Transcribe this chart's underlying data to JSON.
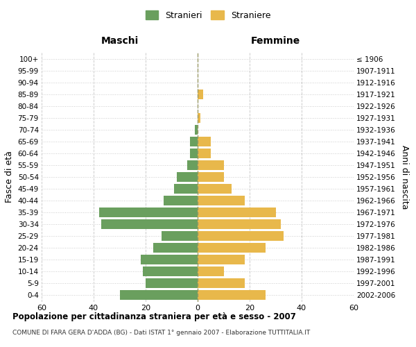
{
  "age_groups": [
    "0-4",
    "5-9",
    "10-14",
    "15-19",
    "20-24",
    "25-29",
    "30-34",
    "35-39",
    "40-44",
    "45-49",
    "50-54",
    "55-59",
    "60-64",
    "65-69",
    "70-74",
    "75-79",
    "80-84",
    "85-89",
    "90-94",
    "95-99",
    "100+"
  ],
  "birth_years": [
    "2002-2006",
    "1997-2001",
    "1992-1996",
    "1987-1991",
    "1982-1986",
    "1977-1981",
    "1972-1976",
    "1967-1971",
    "1962-1966",
    "1957-1961",
    "1952-1956",
    "1947-1951",
    "1942-1946",
    "1937-1941",
    "1932-1936",
    "1927-1931",
    "1922-1926",
    "1917-1921",
    "1912-1916",
    "1907-1911",
    "≤ 1906"
  ],
  "maschi": [
    30,
    20,
    21,
    22,
    17,
    14,
    37,
    38,
    13,
    9,
    8,
    4,
    3,
    3,
    1,
    0,
    0,
    0,
    0,
    0,
    0
  ],
  "femmine": [
    26,
    18,
    10,
    18,
    26,
    33,
    32,
    30,
    18,
    13,
    10,
    10,
    5,
    5,
    0,
    1,
    0,
    2,
    0,
    0,
    0
  ],
  "male_color": "#6a9f5e",
  "female_color": "#e8b84b",
  "legend_male": "Stranieri",
  "legend_female": "Straniere",
  "header_left": "Maschi",
  "header_right": "Femmine",
  "ylabel_left": "Fasce di età",
  "ylabel_right": "Anni di nascita",
  "title_main": "Popolazione per cittadinanza straniera per età e sesso - 2007",
  "title_sub": "COMUNE DI FARA GERA D'ADDA (BG) - Dati ISTAT 1° gennaio 2007 - Elaborazione TUTTITALIA.IT",
  "xlim": 60,
  "xticks": [
    -60,
    -40,
    -20,
    0,
    20,
    40,
    60
  ],
  "grid_color": "#cccccc",
  "bg_color": "#ffffff",
  "bar_height": 0.8,
  "center_line_color": "#999966"
}
